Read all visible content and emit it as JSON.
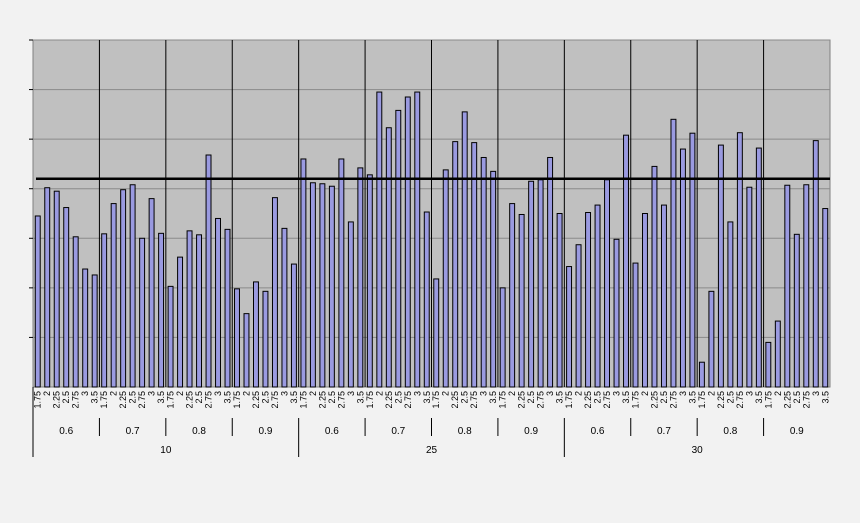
{
  "chart_data": {
    "type": "bar",
    "title": "",
    "xlabel": "",
    "ylabel": "",
    "ylim": [
      0,
      7
    ],
    "grid": true,
    "legend": "none",
    "reference_line": 4.2,
    "colors": {
      "plot_bg": "#c0c0c0",
      "bar_fill": "#9a9ae0",
      "bar_stroke": "#000000",
      "reference_line": "#000000",
      "page_bg": "#f2f2f2"
    },
    "tick_labels": [
      "1.75",
      "2",
      "2.25",
      "2.5",
      "2.75",
      "3",
      "3.5"
    ],
    "level2_labels": [
      "0.6",
      "0.7",
      "0.8",
      "0.9"
    ],
    "level3_labels": [
      "10",
      "25",
      "30"
    ],
    "values": [
      3.45,
      4.02,
      3.95,
      3.62,
      3.03,
      2.38,
      2.26,
      3.09,
      3.7,
      3.98,
      4.08,
      3.0,
      3.8,
      3.1,
      2.03,
      2.62,
      3.15,
      3.07,
      4.68,
      3.4,
      3.18,
      1.98,
      1.48,
      2.12,
      1.93,
      3.82,
      3.2,
      2.48,
      4.6,
      4.12,
      4.1,
      4.05,
      4.6,
      3.33,
      4.42,
      4.28,
      5.95,
      5.23,
      5.58,
      5.85,
      5.95,
      3.53,
      2.18,
      4.38,
      4.95,
      5.55,
      4.93,
      4.63,
      4.35,
      2.0,
      3.7,
      3.48,
      4.15,
      4.18,
      4.63,
      3.5,
      2.43,
      2.87,
      3.52,
      3.67,
      4.18,
      2.98,
      5.08,
      2.5,
      3.5,
      4.45,
      3.67,
      5.4,
      4.8,
      5.12,
      0.5,
      1.93,
      4.88,
      3.33,
      5.13,
      4.03,
      4.82,
      0.9,
      1.33,
      4.07,
      3.08,
      4.08,
      4.97,
      3.6
    ]
  }
}
